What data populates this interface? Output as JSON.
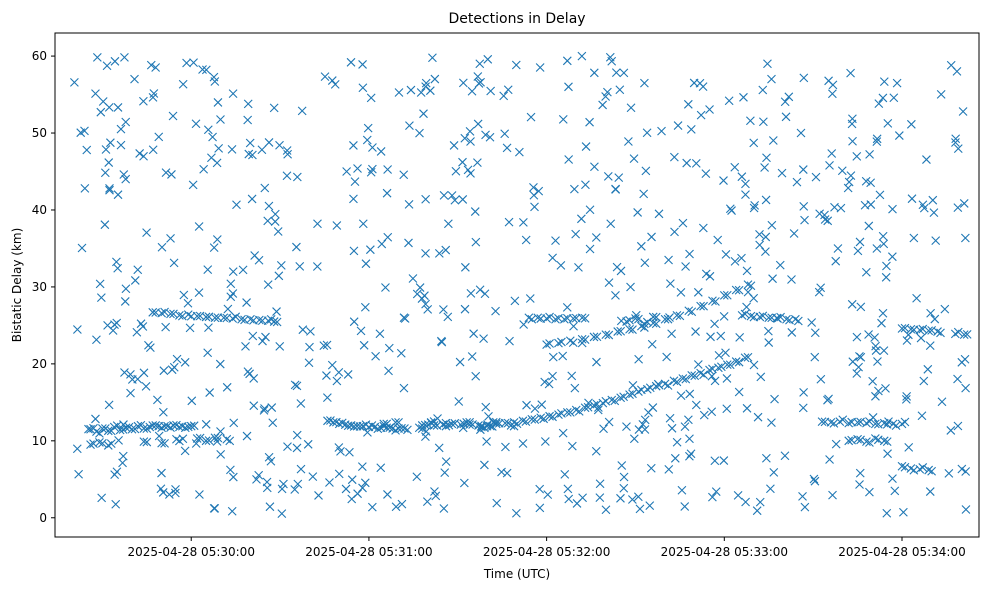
{
  "chart_data": {
    "type": "scatter",
    "title": "Detections in Delay",
    "xlabel": "Time (UTC)",
    "ylabel": "Bistatic Delay (km)",
    "marker": "x",
    "color": "#1f77b4",
    "x_unit": "time (UTC)",
    "xlim": [
      "2025-04-28 05:29:14",
      "2025-04-28 05:34:26"
    ],
    "ylim": [
      -2.5,
      63
    ],
    "x_ticks": [
      "2025-04-28 05:30:00",
      "2025-04-28 05:31:00",
      "2025-04-28 05:32:00",
      "2025-04-28 05:33:00",
      "2025-04-28 05:34:00"
    ],
    "y_ticks": [
      0,
      10,
      20,
      30,
      40,
      50,
      60
    ],
    "grid": false,
    "legend": "none",
    "series": [
      {
        "points": [
          [
            "2025-04-28 05:29:26",
            11.5
          ],
          [
            "2025-04-28 05:29:28",
            11.2
          ],
          [
            "2025-04-28 05:29:30",
            11.6
          ],
          [
            "2025-04-28 05:29:32",
            11.3
          ],
          [
            "2025-04-28 05:29:34",
            11.8
          ],
          [
            "2025-04-28 05:29:36",
            11.4
          ],
          [
            "2025-04-28 05:29:38",
            11.7
          ],
          [
            "2025-04-28 05:29:40",
            11.5
          ],
          [
            "2025-04-28 05:29:42",
            11.9
          ],
          [
            "2025-04-28 05:29:44",
            11.6
          ],
          [
            "2025-04-28 05:29:46",
            11.8
          ],
          [
            "2025-04-28 05:29:48",
            12.0
          ],
          [
            "2025-04-28 05:29:50",
            11.7
          ],
          [
            "2025-04-28 05:29:52",
            11.9
          ],
          [
            "2025-04-28 05:29:54",
            12.0
          ],
          [
            "2025-04-28 05:29:56",
            11.8
          ],
          [
            "2025-04-28 05:29:58",
            11.7
          ],
          [
            "2025-04-28 05:30:00",
            11.9
          ],
          [
            "2025-04-28 05:29:26",
            9.5
          ],
          [
            "2025-04-28 05:29:29",
            9.8
          ],
          [
            "2025-04-28 05:29:32",
            9.4
          ],
          [
            "2025-04-28 05:29:44",
            9.9
          ],
          [
            "2025-04-28 05:29:50",
            9.7
          ],
          [
            "2025-04-28 05:29:55",
            10.2
          ],
          [
            "2025-04-28 05:30:02",
            10.3
          ],
          [
            "2025-04-28 05:30:05",
            10.0
          ],
          [
            "2025-04-28 05:30:08",
            10.4
          ],
          [
            "2025-04-28 05:30:12",
            10.2
          ],
          [
            "2025-04-28 05:29:47",
            26.7
          ],
          [
            "2025-04-28 05:29:50",
            26.6
          ],
          [
            "2025-04-28 05:29:53",
            26.5
          ],
          [
            "2025-04-28 05:29:56",
            26.3
          ],
          [
            "2025-04-28 05:29:59",
            26.4
          ],
          [
            "2025-04-28 05:30:02",
            26.2
          ],
          [
            "2025-04-28 05:30:05",
            26.1
          ],
          [
            "2025-04-28 05:30:08",
            26.0
          ],
          [
            "2025-04-28 05:30:11",
            26.0
          ],
          [
            "2025-04-28 05:30:14",
            25.9
          ],
          [
            "2025-04-28 05:30:17",
            25.8
          ],
          [
            "2025-04-28 05:30:20",
            25.8
          ],
          [
            "2025-04-28 05:30:23",
            25.7
          ],
          [
            "2025-04-28 05:30:26",
            25.6
          ],
          [
            "2025-04-28 05:30:28",
            25.5
          ],
          [
            "2025-04-28 05:30:46",
            12.6
          ],
          [
            "2025-04-28 05:30:48",
            12.4
          ],
          [
            "2025-04-28 05:30:50",
            12.2
          ],
          [
            "2025-04-28 05:30:52",
            12.1
          ],
          [
            "2025-04-28 05:30:54",
            12.0
          ],
          [
            "2025-04-28 05:30:56",
            11.9
          ],
          [
            "2025-04-28 05:30:58",
            11.9
          ],
          [
            "2025-04-28 05:31:00",
            11.8
          ],
          [
            "2025-04-28 05:31:02",
            11.8
          ],
          [
            "2025-04-28 05:31:04",
            11.7
          ],
          [
            "2025-04-28 05:31:06",
            11.7
          ],
          [
            "2025-04-28 05:31:08",
            11.6
          ],
          [
            "2025-04-28 05:31:10",
            11.6
          ],
          [
            "2025-04-28 05:31:12",
            11.6
          ],
          [
            "2025-04-28 05:31:18",
            12.0
          ],
          [
            "2025-04-28 05:31:20",
            12.1
          ],
          [
            "2025-04-28 05:31:22",
            12.0
          ],
          [
            "2025-04-28 05:31:25",
            12.1
          ],
          [
            "2025-04-28 05:31:28",
            12.2
          ],
          [
            "2025-04-28 05:31:31",
            12.1
          ],
          [
            "2025-04-28 05:31:34",
            12.1
          ],
          [
            "2025-04-28 05:31:37",
            12.0
          ],
          [
            "2025-04-28 05:31:40",
            12.1
          ],
          [
            "2025-04-28 05:31:43",
            12.2
          ],
          [
            "2025-04-28 05:31:46",
            12.3
          ],
          [
            "2025-04-28 05:31:49",
            12.4
          ],
          [
            "2025-04-28 05:31:52",
            12.6
          ],
          [
            "2025-04-28 05:31:55",
            12.8
          ],
          [
            "2025-04-28 05:31:58",
            13.0
          ],
          [
            "2025-04-28 05:32:01",
            13.2
          ],
          [
            "2025-04-28 05:32:04",
            13.4
          ],
          [
            "2025-04-28 05:32:07",
            13.7
          ],
          [
            "2025-04-28 05:32:10",
            14.0
          ],
          [
            "2025-04-28 05:32:13",
            14.3
          ],
          [
            "2025-04-28 05:32:16",
            14.6
          ],
          [
            "2025-04-28 05:32:19",
            14.9
          ],
          [
            "2025-04-28 05:32:22",
            15.3
          ],
          [
            "2025-04-28 05:32:25",
            15.6
          ],
          [
            "2025-04-28 05:32:28",
            16.0
          ],
          [
            "2025-04-28 05:32:31",
            16.4
          ],
          [
            "2025-04-28 05:32:34",
            16.7
          ],
          [
            "2025-04-28 05:32:37",
            17.1
          ],
          [
            "2025-04-28 05:32:40",
            17.4
          ],
          [
            "2025-04-28 05:32:43",
            17.8
          ],
          [
            "2025-04-28 05:32:46",
            18.1
          ],
          [
            "2025-04-28 05:32:49",
            18.5
          ],
          [
            "2025-04-28 05:32:52",
            18.8
          ],
          [
            "2025-04-28 05:32:55",
            19.2
          ],
          [
            "2025-04-28 05:32:58",
            19.5
          ],
          [
            "2025-04-28 05:33:01",
            19.9
          ],
          [
            "2025-04-28 05:33:04",
            20.3
          ],
          [
            "2025-04-28 05:33:07",
            20.8
          ],
          [
            "2025-04-28 05:31:05",
            12.2
          ],
          [
            "2025-04-28 05:31:09",
            12.4
          ],
          [
            "2025-04-28 05:31:17",
            11.7
          ],
          [
            "2025-04-28 05:31:21",
            12.4
          ],
          [
            "2025-04-28 05:31:26",
            11.9
          ],
          [
            "2025-04-28 05:31:33",
            12.4
          ],
          [
            "2025-04-28 05:31:38",
            11.8
          ],
          [
            "2025-04-28 05:31:42",
            12.4
          ],
          [
            "2025-04-28 05:31:48",
            12.0
          ],
          [
            "2025-04-28 05:31:54",
            26.0
          ],
          [
            "2025-04-28 05:31:57",
            26.0
          ],
          [
            "2025-04-28 05:32:00",
            25.9
          ],
          [
            "2025-04-28 05:32:03",
            25.8
          ],
          [
            "2025-04-28 05:32:06",
            25.8
          ],
          [
            "2025-04-28 05:32:09",
            25.9
          ],
          [
            "2025-04-28 05:32:12",
            26.0
          ],
          [
            "2025-04-28 05:32:00",
            22.5
          ],
          [
            "2025-04-28 05:32:04",
            22.7
          ],
          [
            "2025-04-28 05:32:08",
            23.0
          ],
          [
            "2025-04-28 05:32:12",
            23.2
          ],
          [
            "2025-04-28 05:32:16",
            23.5
          ],
          [
            "2025-04-28 05:32:20",
            23.8
          ],
          [
            "2025-04-28 05:32:24",
            24.2
          ],
          [
            "2025-04-28 05:32:28",
            24.5
          ],
          [
            "2025-04-28 05:32:32",
            24.9
          ],
          [
            "2025-04-28 05:32:36",
            25.3
          ],
          [
            "2025-04-28 05:32:40",
            25.8
          ],
          [
            "2025-04-28 05:32:44",
            26.3
          ],
          [
            "2025-04-28 05:32:48",
            26.9
          ],
          [
            "2025-04-28 05:32:52",
            27.5
          ],
          [
            "2025-04-28 05:32:56",
            28.2
          ],
          [
            "2025-04-28 05:33:00",
            28.9
          ],
          [
            "2025-04-28 05:33:04",
            29.6
          ],
          [
            "2025-04-28 05:33:08",
            30.3
          ],
          [
            "2025-04-28 05:32:27",
            25.5
          ],
          [
            "2025-04-28 05:32:30",
            25.9
          ],
          [
            "2025-04-28 05:32:33",
            25.2
          ],
          [
            "2025-04-28 05:32:36",
            26.1
          ],
          [
            "2025-04-28 05:33:06",
            26.3
          ],
          [
            "2025-04-28 05:33:09",
            26.2
          ],
          [
            "2025-04-28 05:33:12",
            26.1
          ],
          [
            "2025-04-28 05:33:15",
            26.0
          ],
          [
            "2025-04-28 05:33:18",
            25.9
          ],
          [
            "2025-04-28 05:33:21",
            25.8
          ],
          [
            "2025-04-28 05:33:24",
            25.8
          ],
          [
            "2025-04-28 05:33:33",
            12.5
          ],
          [
            "2025-04-28 05:33:36",
            12.4
          ],
          [
            "2025-04-28 05:33:39",
            12.5
          ],
          [
            "2025-04-28 05:33:42",
            12.3
          ],
          [
            "2025-04-28 05:33:45",
            12.4
          ],
          [
            "2025-04-28 05:33:48",
            12.3
          ],
          [
            "2025-04-28 05:33:51",
            12.2
          ],
          [
            "2025-04-28 05:33:54",
            12.3
          ],
          [
            "2025-04-28 05:33:57",
            12.2
          ],
          [
            "2025-04-28 05:34:00",
            12.2
          ],
          [
            "2025-04-28 05:33:42",
            10.0
          ],
          [
            "2025-04-28 05:33:45",
            10.2
          ],
          [
            "2025-04-28 05:33:48",
            9.9
          ],
          [
            "2025-04-28 05:33:51",
            10.3
          ],
          [
            "2025-04-28 05:33:54",
            10.0
          ],
          [
            "2025-04-28 05:34:00",
            6.7
          ],
          [
            "2025-04-28 05:34:03",
            6.4
          ],
          [
            "2025-04-28 05:34:06",
            6.3
          ],
          [
            "2025-04-28 05:34:09",
            6.2
          ],
          [
            "2025-04-28 05:34:00",
            24.6
          ],
          [
            "2025-04-28 05:34:03",
            24.5
          ],
          [
            "2025-04-28 05:34:06",
            24.4
          ],
          [
            "2025-04-28 05:34:09",
            24.3
          ],
          [
            "2025-04-28 05:34:12",
            24.2
          ],
          [
            "2025-04-28 05:34:18",
            23.9
          ],
          [
            "2025-04-28 05:34:21",
            23.8
          ]
        ]
      }
    ],
    "background_noise": {
      "count": 780,
      "x_range": [
        "2025-04-28 05:29:20",
        "2025-04-28 05:34:22"
      ],
      "y_range": [
        0.5,
        60
      ]
    }
  }
}
